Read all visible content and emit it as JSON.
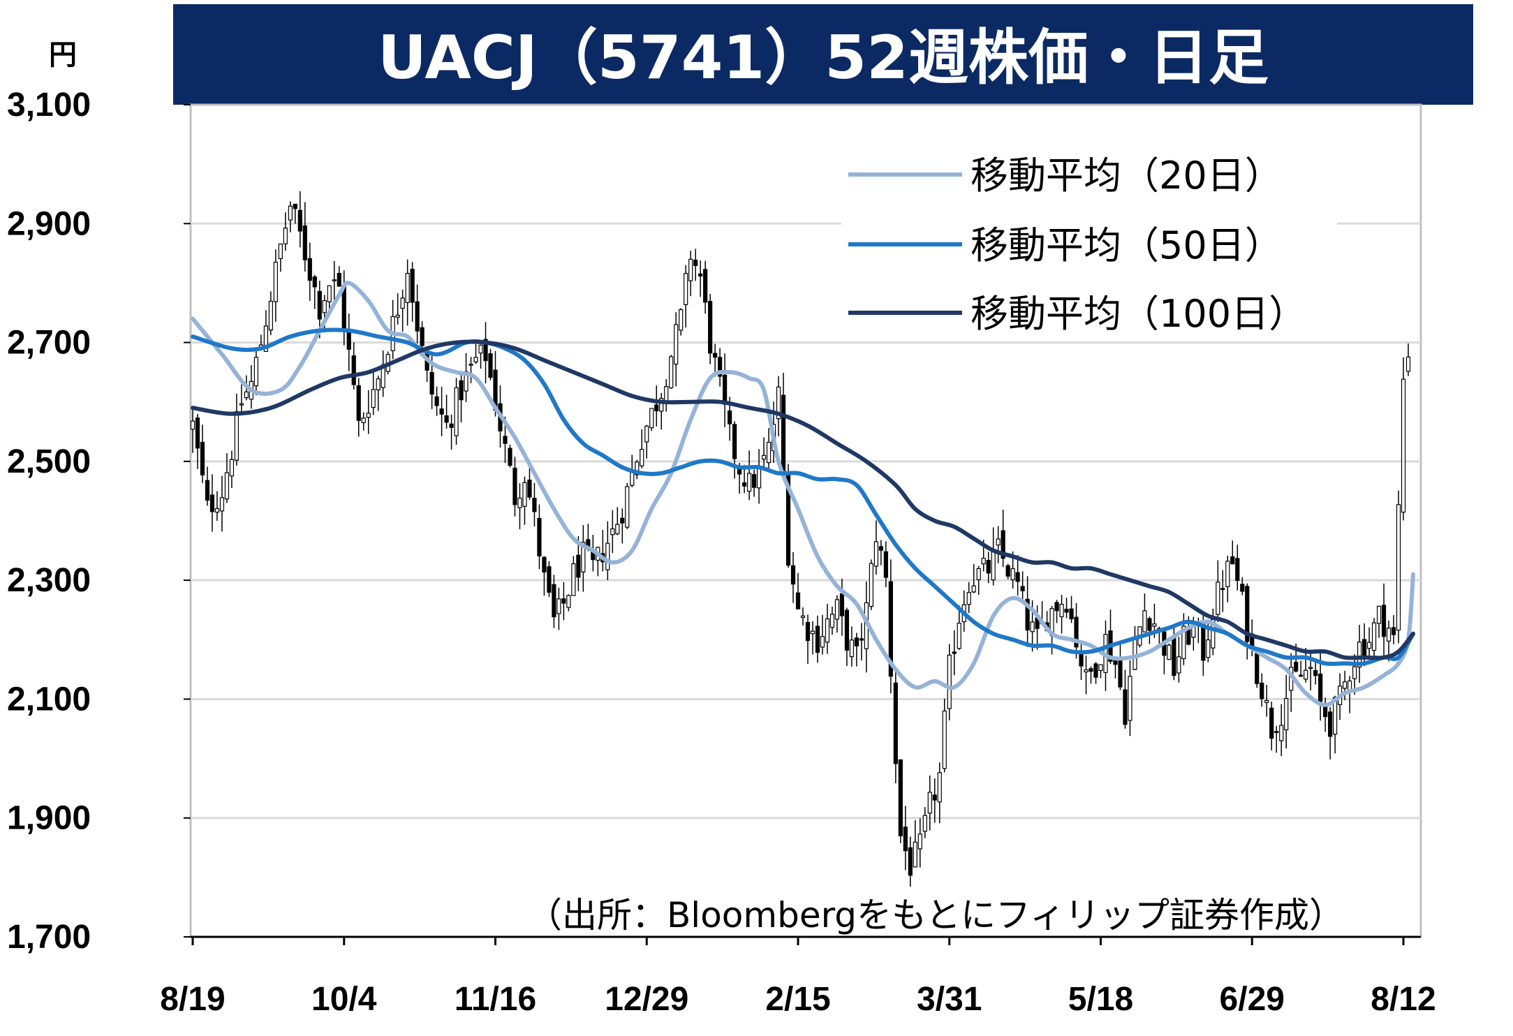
{
  "colors": {
    "title_bg": "#0B2A63",
    "ma20": "#95B3D7",
    "ma50": "#1F78C8",
    "ma100": "#1F3864",
    "grid": "#D9D9D9",
    "candle": "#000000"
  },
  "chart_data": {
    "type": "candlestick",
    "title": "UACJ（5741）52週株価・日足",
    "unit_label": "円",
    "source": "（出所：Bloombergをもとにフィリップ証券作成）",
    "ylim": [
      1700,
      3100
    ],
    "yticks": [
      3100,
      2900,
      2700,
      2500,
      2300,
      2100,
      1900,
      1700
    ],
    "ytick_labels": [
      "3,100",
      "2,900",
      "2,700",
      "2,500",
      "2,300",
      "2,100",
      "1,900",
      "1,700"
    ],
    "grid": true,
    "legend_position": "top-right",
    "x_tick_labels": [
      {
        "index": 0,
        "label": "8/19"
      },
      {
        "index": 31,
        "label": "10/4"
      },
      {
        "index": 62,
        "label": "11/16"
      },
      {
        "index": 93,
        "label": "12/29"
      },
      {
        "index": 124,
        "label": "2/15"
      },
      {
        "index": 155,
        "label": "3/31"
      },
      {
        "index": 186,
        "label": "5/18"
      },
      {
        "index": 217,
        "label": "6/29"
      },
      {
        "index": 248,
        "label": "8/12"
      }
    ],
    "n_days": 250,
    "price_path": [
      [
        0,
        2560
      ],
      [
        3,
        2420
      ],
      [
        6,
        2450
      ],
      [
        8,
        2520
      ],
      [
        10,
        2600
      ],
      [
        12,
        2630
      ],
      [
        14,
        2700
      ],
      [
        16,
        2780
      ],
      [
        18,
        2860
      ],
      [
        20,
        2930
      ],
      [
        22,
        2880
      ],
      [
        24,
        2820
      ],
      [
        26,
        2760
      ],
      [
        28,
        2800
      ],
      [
        30,
        2790
      ],
      [
        32,
        2680
      ],
      [
        34,
        2560
      ],
      [
        36,
        2600
      ],
      [
        38,
        2640
      ],
      [
        40,
        2700
      ],
      [
        42,
        2760
      ],
      [
        44,
        2830
      ],
      [
        46,
        2730
      ],
      [
        48,
        2640
      ],
      [
        50,
        2590
      ],
      [
        52,
        2560
      ],
      [
        54,
        2600
      ],
      [
        56,
        2640
      ],
      [
        58,
        2670
      ],
      [
        60,
        2680
      ],
      [
        62,
        2600
      ],
      [
        64,
        2520
      ],
      [
        66,
        2440
      ],
      [
        68,
        2480
      ],
      [
        70,
        2400
      ],
      [
        72,
        2300
      ],
      [
        74,
        2230
      ],
      [
        76,
        2260
      ],
      [
        78,
        2310
      ],
      [
        80,
        2340
      ],
      [
        82,
        2320
      ],
      [
        84,
        2350
      ],
      [
        86,
        2380
      ],
      [
        88,
        2420
      ],
      [
        90,
        2480
      ],
      [
        92,
        2540
      ],
      [
        94,
        2580
      ],
      [
        96,
        2620
      ],
      [
        98,
        2680
      ],
      [
        100,
        2740
      ],
      [
        102,
        2850
      ],
      [
        104,
        2810
      ],
      [
        106,
        2700
      ],
      [
        108,
        2620
      ],
      [
        110,
        2540
      ],
      [
        112,
        2490
      ],
      [
        114,
        2460
      ],
      [
        116,
        2480
      ],
      [
        118,
        2520
      ],
      [
        120,
        2610
      ],
      [
        122,
        2350
      ],
      [
        124,
        2250
      ],
      [
        126,
        2220
      ],
      [
        128,
        2200
      ],
      [
        130,
        2230
      ],
      [
        132,
        2250
      ],
      [
        134,
        2200
      ],
      [
        136,
        2170
      ],
      [
        138,
        2250
      ],
      [
        140,
        2380
      ],
      [
        142,
        2300
      ],
      [
        144,
        2000
      ],
      [
        145,
        1870
      ],
      [
        147,
        1820
      ],
      [
        149,
        1850
      ],
      [
        151,
        1920
      ],
      [
        153,
        1970
      ],
      [
        155,
        2150
      ],
      [
        157,
        2240
      ],
      [
        159,
        2300
      ],
      [
        161,
        2310
      ],
      [
        163,
        2320
      ],
      [
        165,
        2350
      ],
      [
        167,
        2320
      ],
      [
        169,
        2290
      ],
      [
        171,
        2230
      ],
      [
        173,
        2200
      ],
      [
        175,
        2240
      ],
      [
        177,
        2260
      ],
      [
        179,
        2270
      ],
      [
        181,
        2200
      ],
      [
        183,
        2130
      ],
      [
        185,
        2160
      ],
      [
        187,
        2200
      ],
      [
        189,
        2160
      ],
      [
        191,
        2080
      ],
      [
        193,
        2190
      ],
      [
        195,
        2250
      ],
      [
        197,
        2230
      ],
      [
        199,
        2190
      ],
      [
        201,
        2150
      ],
      [
        203,
        2200
      ],
      [
        205,
        2220
      ],
      [
        207,
        2180
      ],
      [
        209,
        2250
      ],
      [
        211,
        2300
      ],
      [
        213,
        2330
      ],
      [
        215,
        2260
      ],
      [
        217,
        2180
      ],
      [
        219,
        2120
      ],
      [
        221,
        2050
      ],
      [
        223,
        2080
      ],
      [
        225,
        2130
      ],
      [
        227,
        2140
      ],
      [
        229,
        2150
      ],
      [
        231,
        2090
      ],
      [
        233,
        2060
      ],
      [
        235,
        2100
      ],
      [
        237,
        2150
      ],
      [
        239,
        2190
      ],
      [
        241,
        2200
      ],
      [
        243,
        2240
      ],
      [
        245,
        2220
      ],
      [
        246,
        2200
      ],
      [
        247,
        2420
      ],
      [
        248,
        2640
      ],
      [
        249,
        2690
      ]
    ],
    "series": [
      {
        "name": "移動平均（20日）",
        "color_key": "ma20",
        "points": [
          [
            0,
            2740
          ],
          [
            6,
            2680
          ],
          [
            12,
            2620
          ],
          [
            18,
            2620
          ],
          [
            22,
            2660
          ],
          [
            26,
            2720
          ],
          [
            30,
            2780
          ],
          [
            32,
            2800
          ],
          [
            36,
            2770
          ],
          [
            40,
            2720
          ],
          [
            44,
            2710
          ],
          [
            47,
            2680
          ],
          [
            50,
            2660
          ],
          [
            54,
            2650
          ],
          [
            58,
            2640
          ],
          [
            62,
            2590
          ],
          [
            66,
            2540
          ],
          [
            70,
            2480
          ],
          [
            74,
            2420
          ],
          [
            78,
            2370
          ],
          [
            82,
            2350
          ],
          [
            86,
            2330
          ],
          [
            90,
            2350
          ],
          [
            94,
            2420
          ],
          [
            98,
            2480
          ],
          [
            102,
            2570
          ],
          [
            106,
            2640
          ],
          [
            110,
            2650
          ],
          [
            114,
            2640
          ],
          [
            117,
            2620
          ],
          [
            120,
            2500
          ],
          [
            124,
            2420
          ],
          [
            128,
            2340
          ],
          [
            132,
            2290
          ],
          [
            136,
            2260
          ],
          [
            140,
            2200
          ],
          [
            144,
            2150
          ],
          [
            148,
            2120
          ],
          [
            152,
            2130
          ],
          [
            156,
            2120
          ],
          [
            160,
            2160
          ],
          [
            164,
            2240
          ],
          [
            168,
            2270
          ],
          [
            172,
            2250
          ],
          [
            176,
            2210
          ],
          [
            180,
            2200
          ],
          [
            184,
            2190
          ],
          [
            188,
            2170
          ],
          [
            192,
            2170
          ],
          [
            196,
            2180
          ],
          [
            200,
            2200
          ],
          [
            204,
            2220
          ],
          [
            208,
            2230
          ],
          [
            212,
            2210
          ],
          [
            216,
            2190
          ],
          [
            220,
            2170
          ],
          [
            224,
            2150
          ],
          [
            228,
            2110
          ],
          [
            232,
            2090
          ],
          [
            236,
            2110
          ],
          [
            240,
            2120
          ],
          [
            244,
            2140
          ],
          [
            247,
            2160
          ],
          [
            249,
            2200
          ],
          [
            250,
            2310
          ]
        ]
      },
      {
        "name": "移動平均（50日）",
        "color_key": "ma50",
        "points": [
          [
            0,
            2710
          ],
          [
            8,
            2690
          ],
          [
            14,
            2690
          ],
          [
            20,
            2710
          ],
          [
            26,
            2720
          ],
          [
            32,
            2720
          ],
          [
            38,
            2710
          ],
          [
            44,
            2700
          ],
          [
            50,
            2680
          ],
          [
            56,
            2700
          ],
          [
            60,
            2700
          ],
          [
            64,
            2690
          ],
          [
            68,
            2670
          ],
          [
            72,
            2630
          ],
          [
            76,
            2570
          ],
          [
            80,
            2530
          ],
          [
            84,
            2510
          ],
          [
            88,
            2490
          ],
          [
            92,
            2480
          ],
          [
            96,
            2480
          ],
          [
            100,
            2490
          ],
          [
            104,
            2500
          ],
          [
            108,
            2500
          ],
          [
            112,
            2490
          ],
          [
            116,
            2490
          ],
          [
            120,
            2480
          ],
          [
            124,
            2480
          ],
          [
            128,
            2470
          ],
          [
            132,
            2470
          ],
          [
            136,
            2460
          ],
          [
            140,
            2410
          ],
          [
            144,
            2360
          ],
          [
            148,
            2320
          ],
          [
            152,
            2290
          ],
          [
            156,
            2260
          ],
          [
            160,
            2230
          ],
          [
            164,
            2210
          ],
          [
            168,
            2200
          ],
          [
            172,
            2190
          ],
          [
            176,
            2190
          ],
          [
            180,
            2180
          ],
          [
            184,
            2180
          ],
          [
            188,
            2190
          ],
          [
            192,
            2200
          ],
          [
            196,
            2210
          ],
          [
            200,
            2220
          ],
          [
            204,
            2230
          ],
          [
            208,
            2220
          ],
          [
            212,
            2210
          ],
          [
            216,
            2190
          ],
          [
            220,
            2180
          ],
          [
            224,
            2170
          ],
          [
            228,
            2170
          ],
          [
            232,
            2160
          ],
          [
            236,
            2160
          ],
          [
            240,
            2160
          ],
          [
            244,
            2170
          ],
          [
            247,
            2170
          ],
          [
            250,
            2210
          ]
        ]
      },
      {
        "name": "移動平均（100日）",
        "color_key": "ma100",
        "points": [
          [
            0,
            2590
          ],
          [
            8,
            2580
          ],
          [
            16,
            2590
          ],
          [
            24,
            2620
          ],
          [
            30,
            2640
          ],
          [
            36,
            2650
          ],
          [
            42,
            2670
          ],
          [
            48,
            2690
          ],
          [
            54,
            2700
          ],
          [
            60,
            2700
          ],
          [
            66,
            2690
          ],
          [
            72,
            2670
          ],
          [
            78,
            2650
          ],
          [
            84,
            2630
          ],
          [
            90,
            2610
          ],
          [
            96,
            2600
          ],
          [
            102,
            2600
          ],
          [
            108,
            2600
          ],
          [
            114,
            2590
          ],
          [
            120,
            2580
          ],
          [
            126,
            2560
          ],
          [
            132,
            2530
          ],
          [
            138,
            2500
          ],
          [
            144,
            2460
          ],
          [
            148,
            2420
          ],
          [
            152,
            2400
          ],
          [
            156,
            2390
          ],
          [
            160,
            2370
          ],
          [
            164,
            2350
          ],
          [
            168,
            2340
          ],
          [
            172,
            2330
          ],
          [
            176,
            2330
          ],
          [
            180,
            2320
          ],
          [
            184,
            2320
          ],
          [
            188,
            2310
          ],
          [
            192,
            2300
          ],
          [
            196,
            2290
          ],
          [
            200,
            2280
          ],
          [
            204,
            2260
          ],
          [
            208,
            2240
          ],
          [
            212,
            2230
          ],
          [
            216,
            2210
          ],
          [
            220,
            2200
          ],
          [
            224,
            2190
          ],
          [
            228,
            2180
          ],
          [
            232,
            2180
          ],
          [
            236,
            2170
          ],
          [
            240,
            2170
          ],
          [
            244,
            2170
          ],
          [
            247,
            2180
          ],
          [
            250,
            2210
          ]
        ]
      }
    ]
  }
}
